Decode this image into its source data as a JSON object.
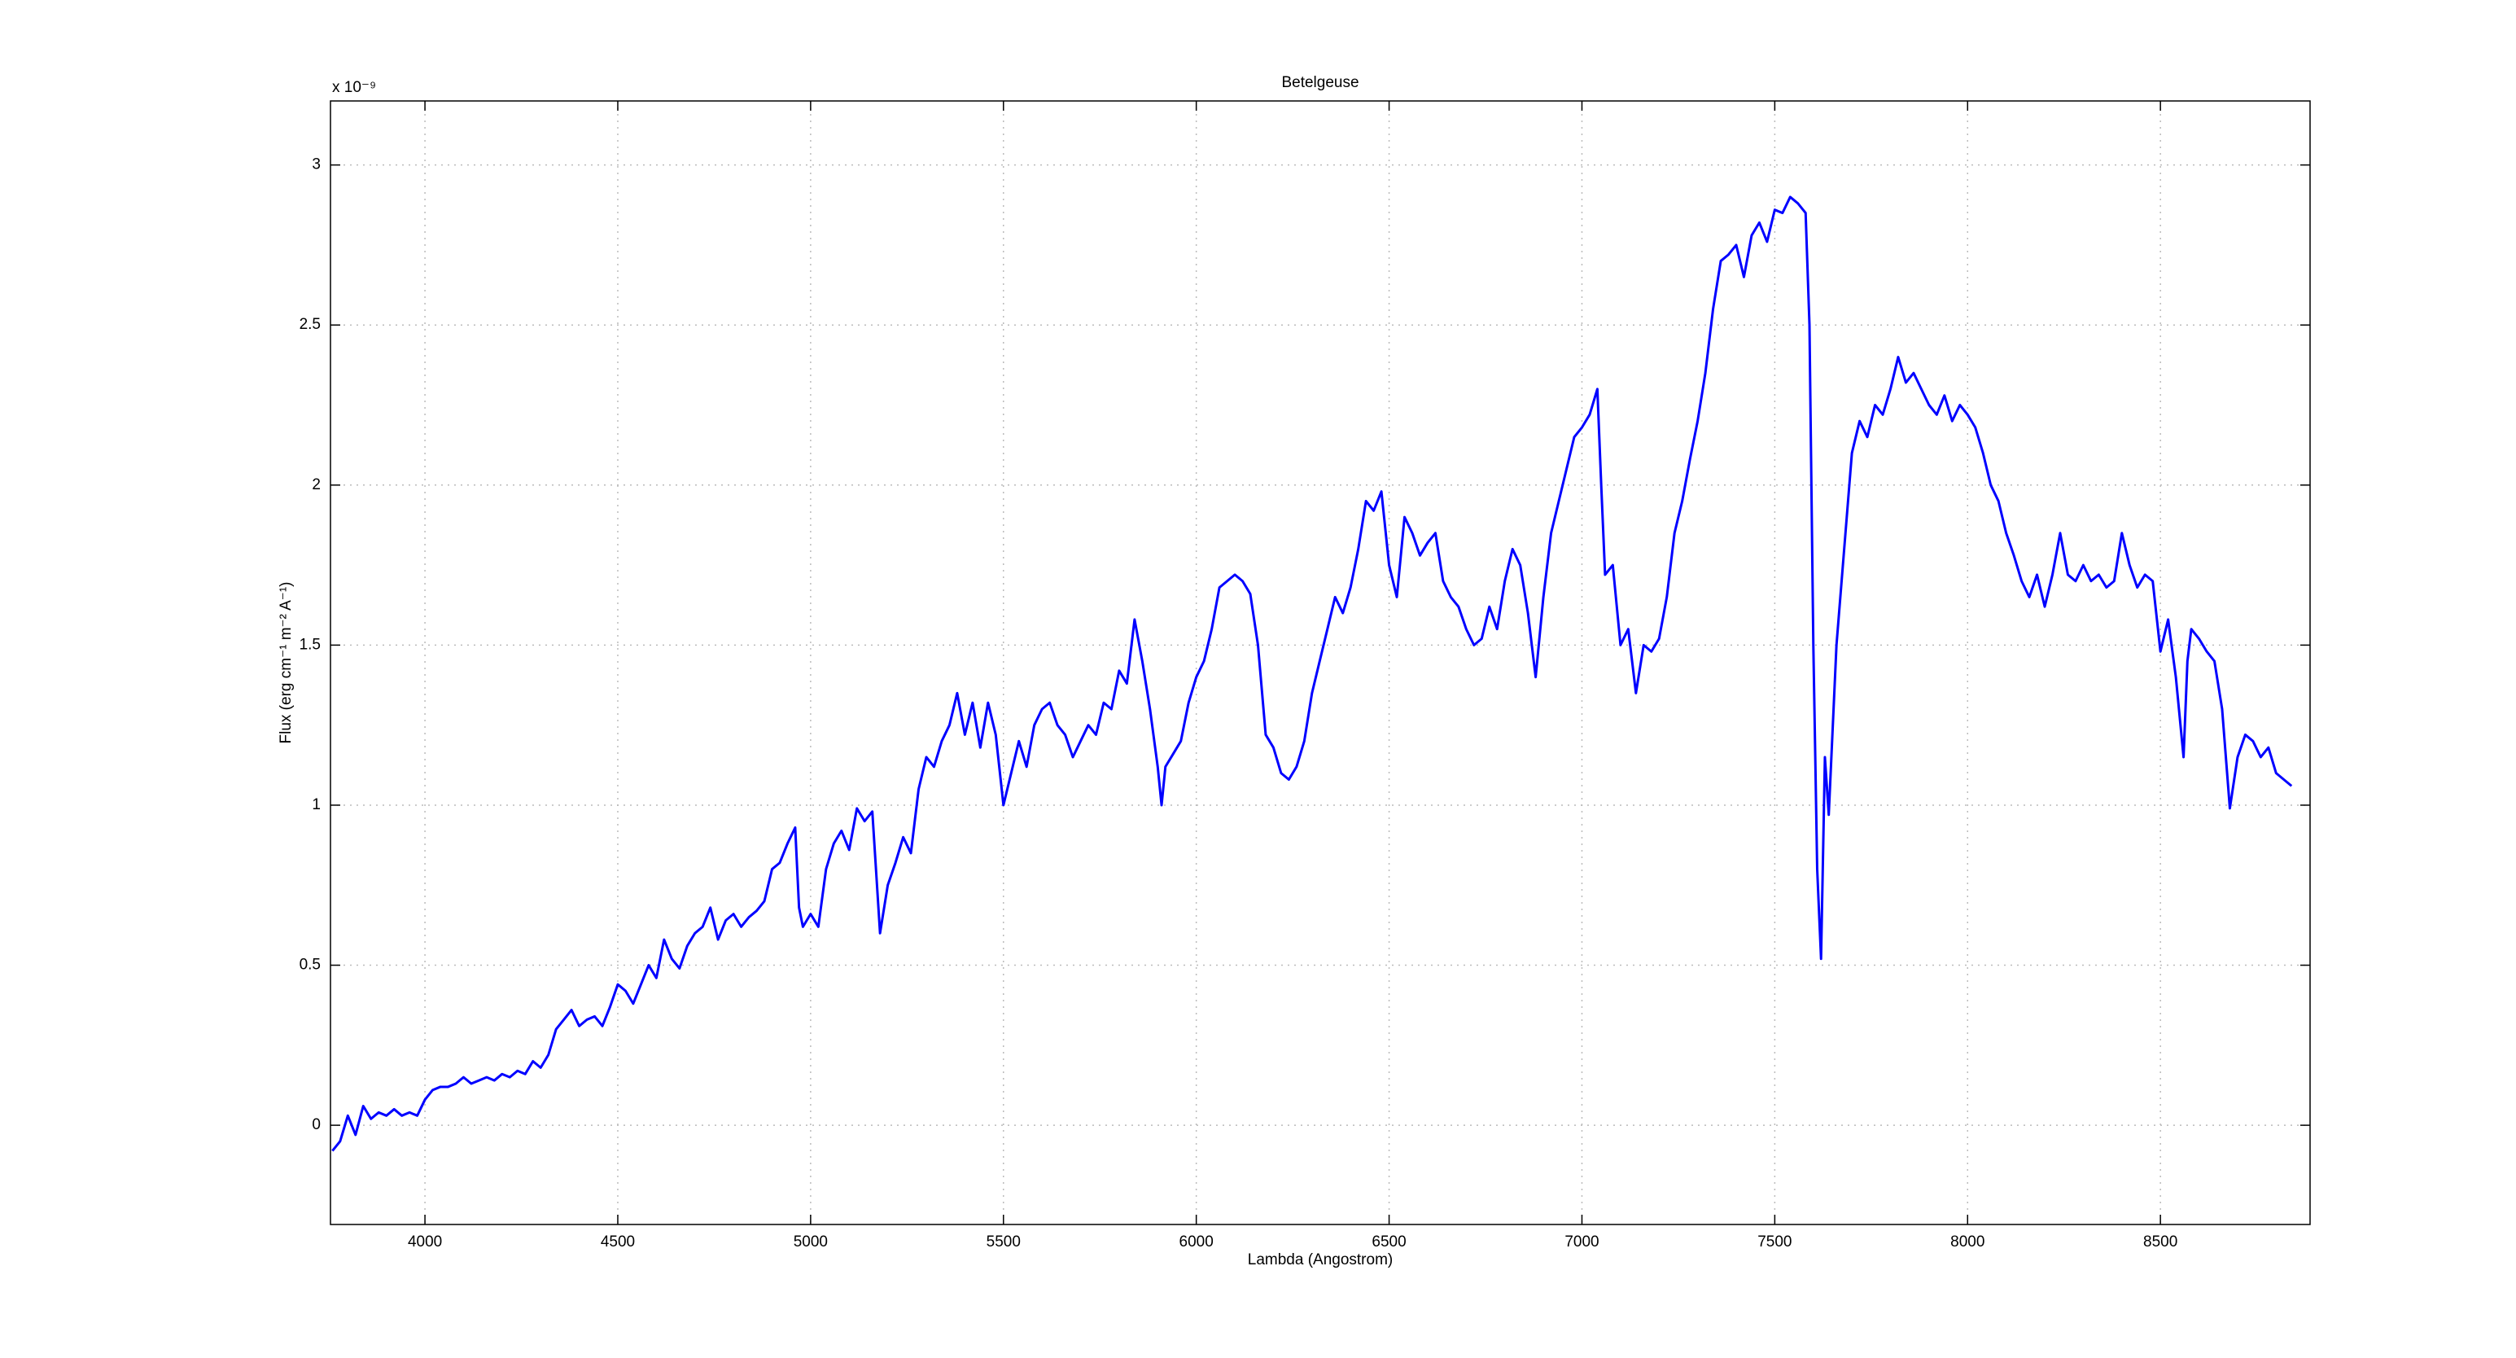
{
  "chart_data": {
    "type": "line",
    "title": "Betelgeuse",
    "xlabel": "Lambda (Angostrom)",
    "ylabel": "Flux (erg cm⁻¹ m⁻² A⁻¹)",
    "y_multiplier": "x 10⁻⁹",
    "color": "#0000ff",
    "grid": true,
    "xlim": [
      3755,
      8888
    ],
    "xticks": [
      4000,
      4500,
      5000,
      5500,
      6000,
      6500,
      7000,
      7500,
      8000,
      8500
    ],
    "ylim": [
      -0.31,
      3.2
    ],
    "yticks": [
      0,
      0.5,
      1,
      1.5,
      2,
      2.5,
      3
    ],
    "x": [
      3760,
      3780,
      3800,
      3820,
      3840,
      3860,
      3880,
      3900,
      3920,
      3940,
      3960,
      3980,
      4000,
      4020,
      4040,
      4060,
      4080,
      4100,
      4120,
      4140,
      4160,
      4180,
      4200,
      4220,
      4240,
      4260,
      4280,
      4300,
      4320,
      4340,
      4360,
      4380,
      4400,
      4420,
      4440,
      4460,
      4480,
      4500,
      4520,
      4540,
      4560,
      4580,
      4600,
      4620,
      4640,
      4660,
      4680,
      4700,
      4720,
      4740,
      4760,
      4780,
      4800,
      4820,
      4840,
      4860,
      4880,
      4900,
      4920,
      4940,
      4960,
      4970,
      4980,
      5000,
      5020,
      5040,
      5060,
      5080,
      5100,
      5120,
      5140,
      5160,
      5180,
      5200,
      5220,
      5240,
      5260,
      5280,
      5300,
      5320,
      5340,
      5360,
      5380,
      5400,
      5420,
      5440,
      5460,
      5480,
      5500,
      5520,
      5540,
      5560,
      5580,
      5600,
      5620,
      5640,
      5660,
      5680,
      5700,
      5720,
      5740,
      5760,
      5780,
      5800,
      5820,
      5840,
      5860,
      5880,
      5900,
      5910,
      5920,
      5940,
      5960,
      5980,
      6000,
      6020,
      6040,
      6060,
      6080,
      6100,
      6120,
      6140,
      6160,
      6180,
      6200,
      6220,
      6240,
      6260,
      6280,
      6300,
      6320,
      6340,
      6360,
      6380,
      6400,
      6420,
      6440,
      6460,
      6480,
      6500,
      6520,
      6540,
      6560,
      6580,
      6600,
      6620,
      6640,
      6660,
      6680,
      6700,
      6720,
      6740,
      6760,
      6780,
      6800,
      6820,
      6840,
      6860,
      6880,
      6900,
      6920,
      6940,
      6960,
      6980,
      7000,
      7020,
      7040,
      7050,
      7060,
      7080,
      7100,
      7120,
      7140,
      7160,
      7180,
      7200,
      7220,
      7240,
      7260,
      7280,
      7300,
      7320,
      7340,
      7360,
      7380,
      7400,
      7420,
      7440,
      7460,
      7480,
      7500,
      7520,
      7540,
      7560,
      7580,
      7590,
      7600,
      7610,
      7620,
      7630,
      7640,
      7660,
      7680,
      7700,
      7720,
      7740,
      7760,
      7780,
      7800,
      7820,
      7840,
      7860,
      7880,
      7900,
      7920,
      7940,
      7960,
      7980,
      8000,
      8020,
      8040,
      8060,
      8080,
      8100,
      8120,
      8140,
      8160,
      8180,
      8200,
      8220,
      8240,
      8260,
      8280,
      8300,
      8320,
      8340,
      8360,
      8380,
      8400,
      8420,
      8440,
      8460,
      8480,
      8500,
      8520,
      8540,
      8560,
      8570,
      8580,
      8600,
      8620,
      8640,
      8660,
      8680,
      8700,
      8720,
      8740,
      8760,
      8780,
      8800,
      8820,
      8840
    ],
    "values": [
      -0.08,
      -0.05,
      0.03,
      -0.03,
      0.06,
      0.02,
      0.04,
      0.03,
      0.05,
      0.03,
      0.04,
      0.03,
      0.08,
      0.11,
      0.12,
      0.12,
      0.13,
      0.15,
      0.13,
      0.14,
      0.15,
      0.14,
      0.16,
      0.15,
      0.17,
      0.16,
      0.2,
      0.18,
      0.22,
      0.3,
      0.33,
      0.36,
      0.31,
      0.33,
      0.34,
      0.31,
      0.37,
      0.44,
      0.42,
      0.38,
      0.44,
      0.5,
      0.46,
      0.58,
      0.52,
      0.49,
      0.56,
      0.6,
      0.62,
      0.68,
      0.58,
      0.64,
      0.66,
      0.62,
      0.65,
      0.67,
      0.7,
      0.8,
      0.82,
      0.88,
      0.93,
      0.68,
      0.62,
      0.66,
      0.62,
      0.8,
      0.88,
      0.92,
      0.86,
      0.99,
      0.95,
      0.98,
      0.6,
      0.75,
      0.82,
      0.9,
      0.85,
      1.05,
      1.15,
      1.12,
      1.2,
      1.25,
      1.35,
      1.22,
      1.32,
      1.18,
      1.32,
      1.22,
      1.0,
      1.1,
      1.2,
      1.12,
      1.25,
      1.3,
      1.32,
      1.25,
      1.22,
      1.15,
      1.2,
      1.25,
      1.22,
      1.32,
      1.3,
      1.42,
      1.38,
      1.58,
      1.45,
      1.3,
      1.12,
      1.0,
      1.12,
      1.16,
      1.2,
      1.32,
      1.4,
      1.45,
      1.55,
      1.68,
      1.7,
      1.72,
      1.7,
      1.66,
      1.5,
      1.22,
      1.18,
      1.1,
      1.08,
      1.12,
      1.2,
      1.35,
      1.45,
      1.55,
      1.65,
      1.6,
      1.68,
      1.8,
      1.95,
      1.92,
      1.98,
      1.75,
      1.65,
      1.9,
      1.85,
      1.78,
      1.82,
      1.85,
      1.7,
      1.65,
      1.62,
      1.55,
      1.5,
      1.52,
      1.62,
      1.55,
      1.7,
      1.8,
      1.75,
      1.6,
      1.4,
      1.65,
      1.85,
      1.95,
      2.05,
      2.15,
      2.18,
      2.22,
      2.3,
      2.0,
      1.72,
      1.75,
      1.5,
      1.55,
      1.35,
      1.5,
      1.48,
      1.52,
      1.65,
      1.85,
      1.95,
      2.08,
      2.2,
      2.35,
      2.55,
      2.7,
      2.72,
      2.75,
      2.65,
      2.78,
      2.82,
      2.76,
      2.86,
      2.85,
      2.9,
      2.88,
      2.85,
      2.5,
      1.5,
      0.8,
      0.52,
      1.15,
      0.97,
      1.5,
      1.8,
      2.1,
      2.2,
      2.15,
      2.25,
      2.22,
      2.3,
      2.4,
      2.32,
      2.35,
      2.3,
      2.25,
      2.22,
      2.28,
      2.2,
      2.25,
      2.22,
      2.18,
      2.1,
      2.0,
      1.95,
      1.85,
      1.78,
      1.7,
      1.65,
      1.72,
      1.62,
      1.72,
      1.85,
      1.72,
      1.7,
      1.75,
      1.7,
      1.72,
      1.68,
      1.7,
      1.85,
      1.75,
      1.68,
      1.72,
      1.7,
      1.48,
      1.58,
      1.4,
      1.15,
      1.45,
      1.55,
      1.52,
      1.48,
      1.45,
      1.3,
      0.99,
      1.15,
      1.22,
      1.2,
      1.15,
      1.18,
      1.1,
      1.08,
      1.06
    ]
  }
}
